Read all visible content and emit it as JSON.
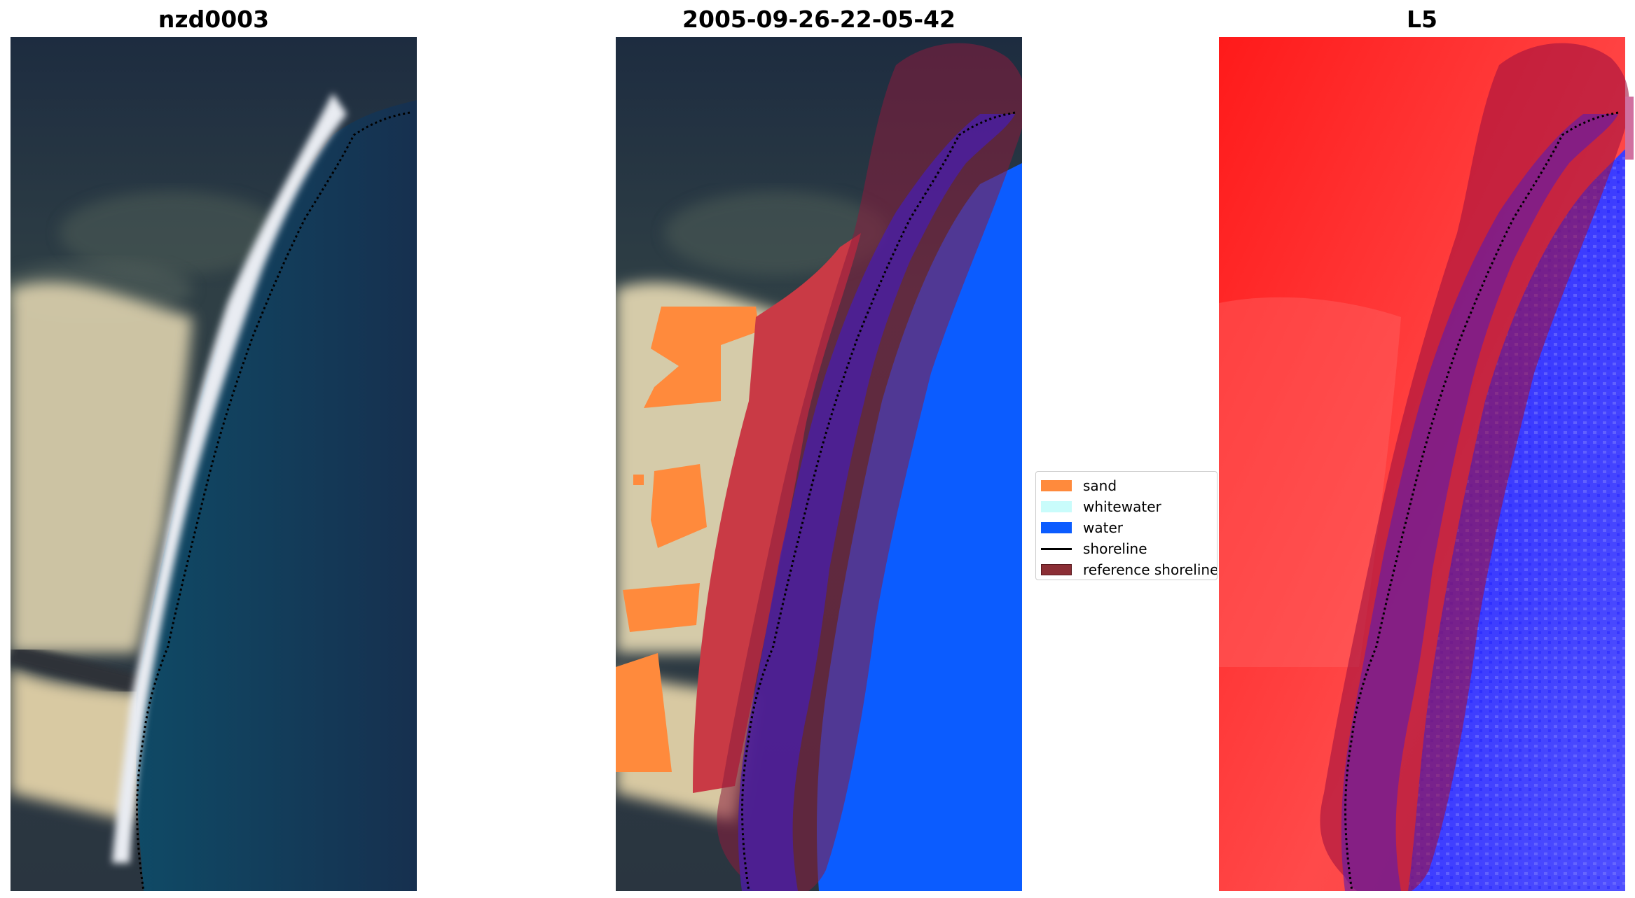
{
  "panels": [
    {
      "title": "nzd0003"
    },
    {
      "title": "2005-09-26-22-05-42"
    },
    {
      "title": "L5"
    }
  ],
  "legend": {
    "items": [
      {
        "label": "sand",
        "kind": "patch",
        "color": "#ff8a3c"
      },
      {
        "label": "whitewater",
        "kind": "patch",
        "color": "#c9fcfb"
      },
      {
        "label": "water",
        "kind": "patch",
        "color": "#0b5cff"
      },
      {
        "label": "shoreline",
        "kind": "line",
        "color": "#000000"
      },
      {
        "label": "reference shoreline",
        "kind": "patch",
        "color": "#8b2e35"
      }
    ]
  },
  "colors": {
    "ocean": "#1a3d5c",
    "land_dark": "#1f2d3e",
    "sand_beach": "#ddd6b8",
    "class_water": "#0b5cff",
    "classification_red": "#c93a45",
    "index_red": "#ff2020",
    "index_blue": "#3b3bff",
    "reference_buffer": "#8b1c3c"
  }
}
